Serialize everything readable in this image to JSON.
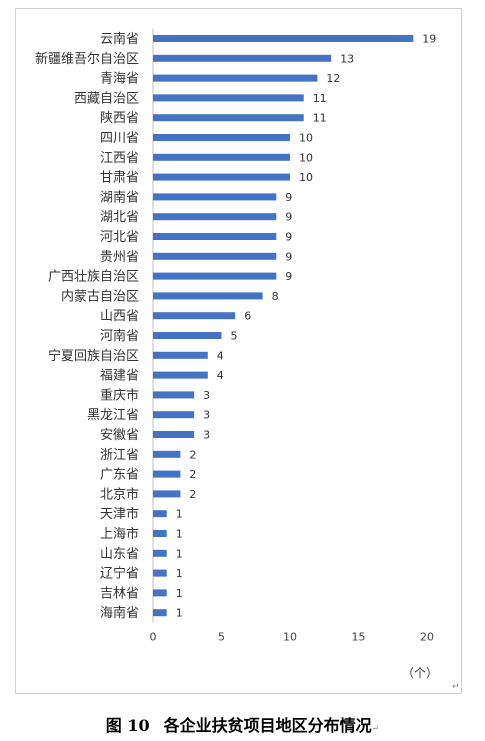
{
  "caption": {
    "figure_number": "图 10",
    "title": "各企业扶贫项目地区分布情况"
  },
  "unit_label": "（个）",
  "chart_data": {
    "type": "bar",
    "orientation": "horizontal",
    "title": "",
    "xlabel": "",
    "ylabel": "",
    "xlim": [
      0,
      20
    ],
    "xticks": [
      0,
      5,
      10,
      15,
      20
    ],
    "bar_color": "#4472C4",
    "grid": false,
    "categories": [
      "云南省",
      "新疆维吾尔自治区",
      "青海省",
      "西藏自治区",
      "陕西省",
      "四川省",
      "江西省",
      "甘肃省",
      "湖南省",
      "湖北省",
      "河北省",
      "贵州省",
      "广西壮族自治区",
      "内蒙古自治区",
      "山西省",
      "河南省",
      "宁夏回族自治区",
      "福建省",
      "重庆市",
      "黑龙江省",
      "安徽省",
      "浙江省",
      "广东省",
      "北京市",
      "天津市",
      "上海市",
      "山东省",
      "辽宁省",
      "吉林省",
      "海南省"
    ],
    "values": [
      19,
      13,
      12,
      11,
      11,
      10,
      10,
      10,
      9,
      9,
      9,
      9,
      9,
      8,
      6,
      5,
      4,
      4,
      3,
      3,
      3,
      2,
      2,
      2,
      1,
      1,
      1,
      1,
      1,
      1
    ]
  }
}
